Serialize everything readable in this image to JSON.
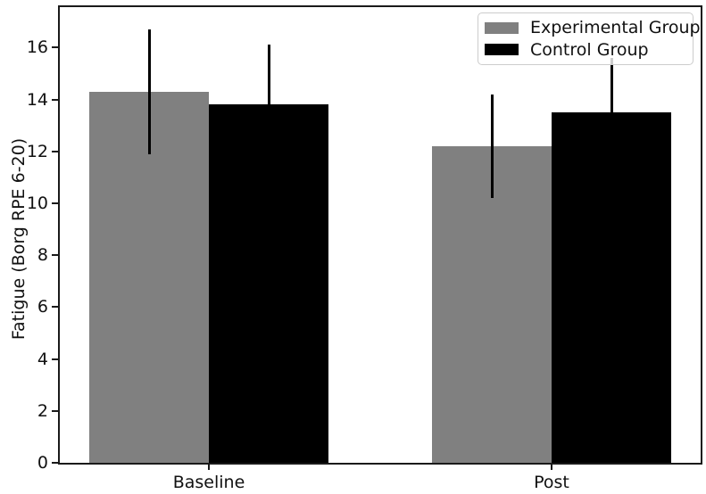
{
  "chart_data": {
    "type": "bar",
    "title": "",
    "xlabel": "",
    "ylabel": "Fatigue (Borg RPE 6-20)",
    "categories": [
      "Baseline",
      "Post"
    ],
    "series": [
      {
        "name": "Experimental Group",
        "color": "#808080",
        "values": [
          14.3,
          12.2
        ],
        "errors": [
          2.4,
          2.0
        ]
      },
      {
        "name": "Control Group",
        "color": "#000000",
        "values": [
          13.8,
          13.5
        ],
        "errors": [
          2.3,
          2.1
        ]
      }
    ],
    "error_bar_color": "#000000",
    "yticks": [
      0,
      2,
      4,
      6,
      8,
      10,
      12,
      14,
      16
    ],
    "ylim": [
      0,
      17.6
    ],
    "grid": false,
    "legend_position": "upper right",
    "legend_labels": [
      "Experimental Group",
      "Control Group"
    ]
  }
}
